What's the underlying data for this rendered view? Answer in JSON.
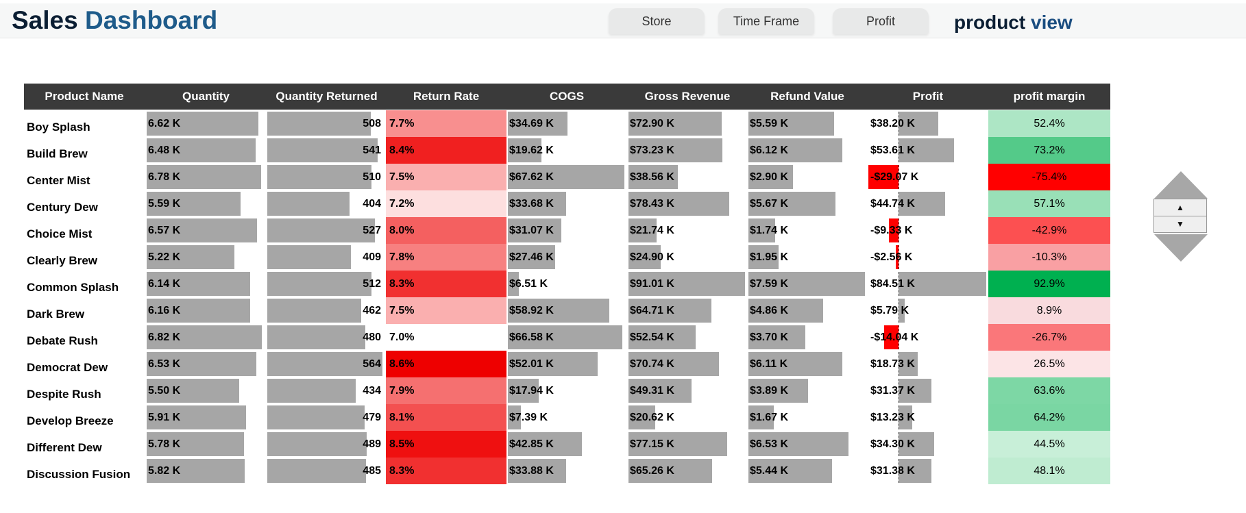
{
  "header": {
    "title_part1": "Sales",
    "title_part2": "Dashboard",
    "tabs": [
      "Store",
      "Time Frame",
      "Profit"
    ],
    "view_part1": "product",
    "view_part2": "view"
  },
  "table": {
    "columns": [
      "Product Name",
      "Quantity",
      "Quantity Returned",
      "Return Rate",
      "COGS",
      "Gross Revenue",
      "Refund Value",
      "Profit",
      "profit margin"
    ],
    "rows": [
      {
        "name": "Boy Splash",
        "qty": "6.62 K",
        "qty_ret": "508",
        "rr": "7.7%",
        "cogs": "$34.69 K",
        "gross": "$72.90 K",
        "refund": "$5.59 K",
        "profit": "$38.20 K",
        "margin": "52.4%"
      },
      {
        "name": "Build Brew",
        "qty": "6.48 K",
        "qty_ret": "541",
        "rr": "8.4%",
        "cogs": "$19.62 K",
        "gross": "$73.23 K",
        "refund": "$6.12 K",
        "profit": "$53.61 K",
        "margin": "73.2%"
      },
      {
        "name": "Center Mist",
        "qty": "6.78 K",
        "qty_ret": "510",
        "rr": "7.5%",
        "cogs": "$67.62 K",
        "gross": "$38.56 K",
        "refund": "$2.90 K",
        "profit": "-$29.07 K",
        "margin": "-75.4%"
      },
      {
        "name": "Century Dew",
        "qty": "5.59 K",
        "qty_ret": "404",
        "rr": "7.2%",
        "cogs": "$33.68 K",
        "gross": "$78.43 K",
        "refund": "$5.67 K",
        "profit": "$44.74 K",
        "margin": "57.1%"
      },
      {
        "name": "Choice Mist",
        "qty": "6.57 K",
        "qty_ret": "527",
        "rr": "8.0%",
        "cogs": "$31.07 K",
        "gross": "$21.74 K",
        "refund": "$1.74 K",
        "profit": "-$9.33 K",
        "margin": "-42.9%"
      },
      {
        "name": "Clearly Brew",
        "qty": "5.22 K",
        "qty_ret": "409",
        "rr": "7.8%",
        "cogs": "$27.46 K",
        "gross": "$24.90 K",
        "refund": "$1.95 K",
        "profit": "-$2.56 K",
        "margin": "-10.3%"
      },
      {
        "name": "Common Splash",
        "qty": "6.14 K",
        "qty_ret": "512",
        "rr": "8.3%",
        "cogs": "$6.51 K",
        "gross": "$91.01 K",
        "refund": "$7.59 K",
        "profit": "$84.51 K",
        "margin": "92.9%"
      },
      {
        "name": "Dark Brew",
        "qty": "6.16 K",
        "qty_ret": "462",
        "rr": "7.5%",
        "cogs": "$58.92 K",
        "gross": "$64.71 K",
        "refund": "$4.86 K",
        "profit": "$5.79 K",
        "margin": "8.9%"
      },
      {
        "name": "Debate Rush",
        "qty": "6.82 K",
        "qty_ret": "480",
        "rr": "7.0%",
        "cogs": "$66.58 K",
        "gross": "$52.54 K",
        "refund": "$3.70 K",
        "profit": "-$14.04 K",
        "margin": "-26.7%"
      },
      {
        "name": "Democrat Dew",
        "qty": "6.53 K",
        "qty_ret": "564",
        "rr": "8.6%",
        "cogs": "$52.01 K",
        "gross": "$70.74 K",
        "refund": "$6.11 K",
        "profit": "$18.73 K",
        "margin": "26.5%"
      },
      {
        "name": "Despite Rush",
        "qty": "5.50 K",
        "qty_ret": "434",
        "rr": "7.9%",
        "cogs": "$17.94 K",
        "gross": "$49.31 K",
        "refund": "$3.89 K",
        "profit": "$31.37 K",
        "margin": "63.6%"
      },
      {
        "name": "Develop Breeze",
        "qty": "5.91 K",
        "qty_ret": "479",
        "rr": "8.1%",
        "cogs": "$7.39 K",
        "gross": "$20.62 K",
        "refund": "$1.67 K",
        "profit": "$13.23 K",
        "margin": "64.2%"
      },
      {
        "name": "Different Dew",
        "qty": "5.78 K",
        "qty_ret": "489",
        "rr": "8.5%",
        "cogs": "$42.85 K",
        "gross": "$77.15 K",
        "refund": "$6.53 K",
        "profit": "$34.30 K",
        "margin": "44.5%"
      },
      {
        "name": "Discussion Fusion",
        "qty": "5.82 K",
        "qty_ret": "485",
        "rr": "8.3%",
        "cogs": "$33.88 K",
        "gross": "$65.26 K",
        "refund": "$5.44 K",
        "profit": "$31.38 K",
        "margin": "48.1%"
      }
    ]
  },
  "scroll_control": {
    "up_icon": "triangle-up-icon",
    "down_icon": "triangle-down-icon"
  },
  "colors": {
    "header_bg": "#3a3a3a",
    "bar": "#a6a6a6",
    "negative": "#ff0000",
    "rr_low": "#ffffff",
    "rr_high": "#ee0000",
    "pm_high": "#00b050",
    "pm_low": "#ff0000"
  }
}
